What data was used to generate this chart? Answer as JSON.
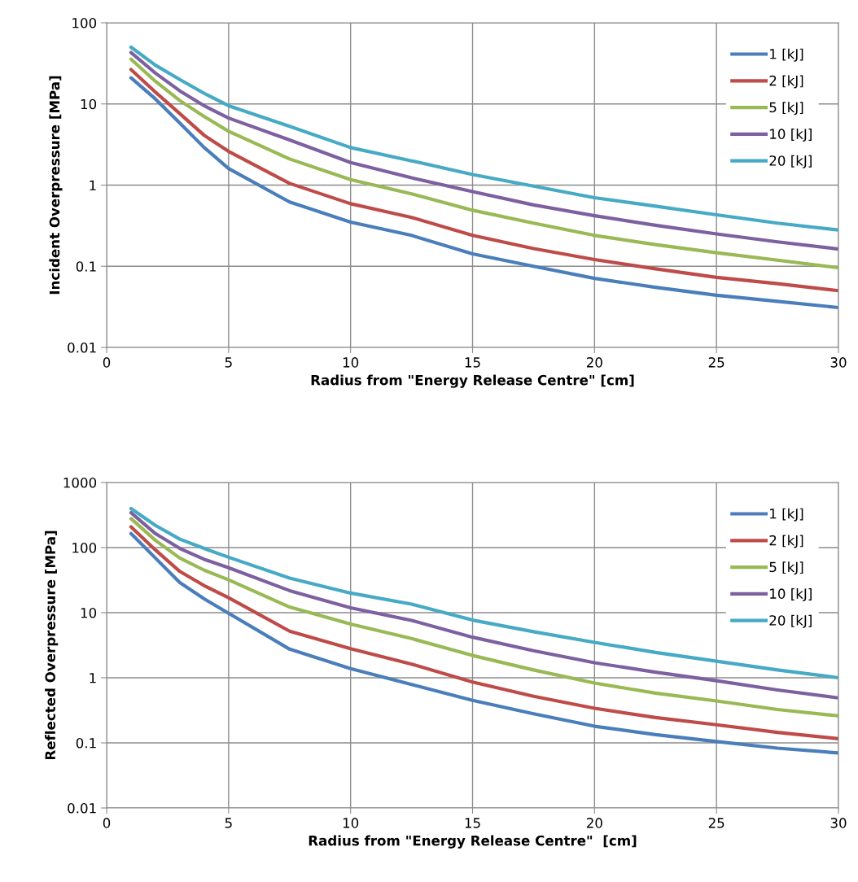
{
  "chart_data": [
    {
      "type": "line",
      "xlabel": "Radius from \"Energy Release Centre\" [cm]",
      "ylabel": "Incident Overpressure [MPa]",
      "log": "y",
      "grid": true,
      "legend": "top right",
      "line_style": "solid",
      "x": [
        1,
        2,
        3,
        4,
        5,
        7.5,
        10,
        12.5,
        15,
        17.5,
        20,
        22.5,
        25,
        27.5,
        30
      ],
      "xlim": [
        0,
        30
      ],
      "xticks": [
        0,
        5,
        10,
        15,
        20,
        25,
        30
      ],
      "ylim": [
        0.01,
        100
      ],
      "yticks": [
        0.01,
        0.1,
        1,
        10,
        100
      ],
      "series": [
        {
          "name": "1 [kJ]",
          "color": "#4a7ebb",
          "values": [
            21,
            11.5,
            5.8,
            2.9,
            1.6,
            0.62,
            0.35,
            0.24,
            0.142,
            0.1,
            0.071,
            0.055,
            0.044,
            0.037,
            0.031
          ]
        },
        {
          "name": "2 [kJ]",
          "color": "#be4b48",
          "values": [
            26.5,
            14,
            7.6,
            4.1,
            2.6,
            1.05,
            0.59,
            0.4,
            0.24,
            0.165,
            0.121,
            0.093,
            0.073,
            0.061,
            0.05
          ]
        },
        {
          "name": "5 [kJ]",
          "color": "#98b954",
          "values": [
            35.6,
            19,
            11,
            7,
            4.6,
            2.1,
            1.17,
            0.78,
            0.49,
            0.34,
            0.24,
            0.185,
            0.147,
            0.119,
            0.096
          ]
        },
        {
          "name": "10 [kJ]",
          "color": "#7d60a0",
          "values": [
            43,
            24,
            14.5,
            9.5,
            6.7,
            3.6,
            1.9,
            1.23,
            0.83,
            0.57,
            0.42,
            0.32,
            0.25,
            0.2,
            0.163
          ]
        },
        {
          "name": "20 [kJ]",
          "color": "#46aac5",
          "values": [
            50,
            30,
            20,
            13.5,
            9.5,
            5.3,
            2.9,
            1.99,
            1.35,
            0.97,
            0.7,
            0.55,
            0.43,
            0.34,
            0.28
          ]
        }
      ]
    },
    {
      "type": "line",
      "xlabel": "Radius from \"Energy Release Centre\"  [cm]",
      "ylabel": "Reflected Overpressure [MPa]",
      "log": "y",
      "grid": true,
      "legend": "top right",
      "line_style": "solid",
      "x": [
        1,
        2,
        3,
        4,
        5,
        7.5,
        10,
        12.5,
        15,
        17.5,
        20,
        22.5,
        25,
        27.5,
        30
      ],
      "xlim": [
        0,
        30
      ],
      "xticks": [
        0,
        5,
        10,
        15,
        20,
        25,
        30
      ],
      "ylim": [
        0.01,
        1000
      ],
      "yticks": [
        0.01,
        0.1,
        1,
        10,
        100,
        1000
      ],
      "series": [
        {
          "name": "1 [kJ]",
          "color": "#4a7ebb",
          "values": [
            164,
            69,
            29,
            16.3,
            9.8,
            2.75,
            1.38,
            0.79,
            0.45,
            0.28,
            0.18,
            0.134,
            0.105,
            0.083,
            0.07
          ]
        },
        {
          "name": "2 [kJ]",
          "color": "#be4b48",
          "values": [
            209,
            92,
            43,
            26,
            17,
            5.2,
            2.8,
            1.62,
            0.86,
            0.52,
            0.34,
            0.245,
            0.19,
            0.145,
            0.116
          ]
        },
        {
          "name": "5 [kJ]",
          "color": "#98b954",
          "values": [
            279,
            129,
            69,
            45,
            32,
            12.2,
            6.7,
            4,
            2.2,
            1.32,
            0.83,
            0.58,
            0.44,
            0.325,
            0.26
          ]
        },
        {
          "name": "10 [kJ]",
          "color": "#7d60a0",
          "values": [
            344,
            164,
            97,
            66,
            49,
            21.8,
            11.9,
            7.6,
            4.2,
            2.6,
            1.7,
            1.22,
            0.9,
            0.65,
            0.49
          ]
        },
        {
          "name": "20 [kJ]",
          "color": "#46aac5",
          "values": [
            398,
            219,
            135,
            97,
            71,
            34,
            20,
            13.5,
            7.7,
            5.1,
            3.5,
            2.45,
            1.8,
            1.32,
            1.0
          ]
        }
      ]
    }
  ]
}
